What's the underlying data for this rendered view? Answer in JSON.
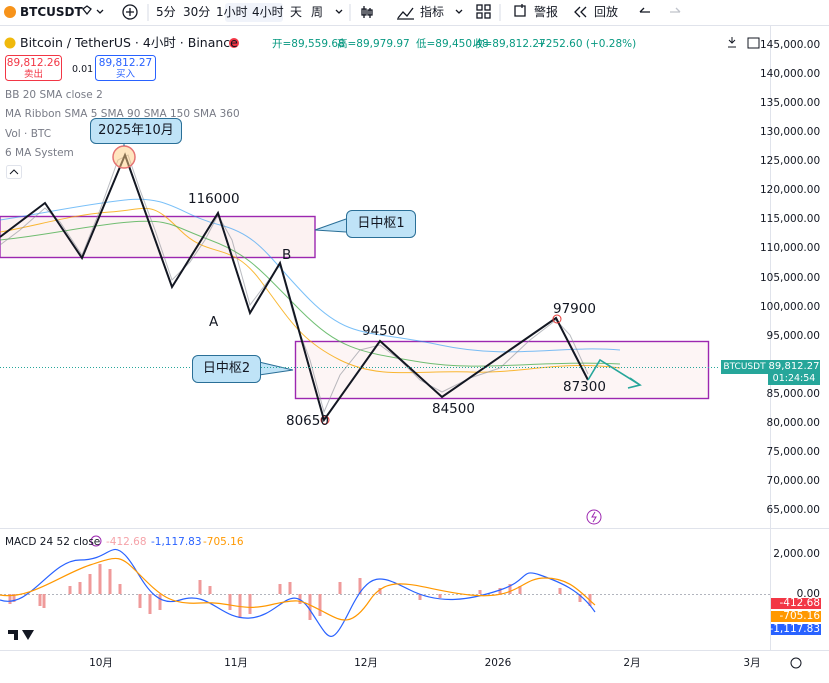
{
  "toolbar": {
    "symbol": "BTCUSDT",
    "intervals": [
      "5分",
      "30分",
      "1小时",
      "4小时",
      "天",
      "周"
    ],
    "indicators": "指标",
    "alert": "警报",
    "replay": "回放"
  },
  "legend": {
    "title": "Bitcoin / TetherUS · 4小时 · Binance",
    "ohlc": [
      "开=89,559.68",
      "高=89,979.97",
      "低=89,450.48",
      "收=89,812.27"
    ],
    "change": "+252.60 (+0.28%)",
    "sell": {
      "price": "89,812.26",
      "label": "卖出"
    },
    "spread": "0.01",
    "buy": {
      "price": "89,812.27",
      "label": "买入"
    },
    "indicators": [
      "BB 20 SMA close 2",
      "MA Ribbon SMA 5 SMA 90 SMA 150 SMA 360",
      "Vol · BTC",
      "6 MA System"
    ]
  },
  "annotations": {
    "october": "2025年10月",
    "high_116000": "116000",
    "zone1": "日中枢1",
    "point_b": "B",
    "point_a": "A",
    "high_94500": "94500",
    "high_97900": "97900",
    "zone2": "日中枢2",
    "low_80650": "80650",
    "low_84500": "84500",
    "low_87300": "87300"
  },
  "price_axis": [
    "145,000.00",
    "140,000.00",
    "135,000.00",
    "130,000.00",
    "125,000.00",
    "120,000.00",
    "115,000.00",
    "110,000.00",
    "105,000.00",
    "100,000.00",
    "95,000.00",
    "85,000.00",
    "80,000.00",
    "75,000.00",
    "70,000.00",
    "65,000.00"
  ],
  "price_tag": {
    "symbol": "BTCUSDT",
    "price": "89,812.27",
    "countdown": "01:24:54"
  },
  "macd": {
    "title": "MACD 24 52 close",
    "values": [
      "-412.68",
      "-1,117.83",
      "-705.16"
    ],
    "axis": [
      "2,000.00",
      "0.00"
    ],
    "tags": [
      "-412.68",
      "-705.16",
      "-1,117.83"
    ]
  },
  "time_axis": [
    "10月",
    "11月",
    "12月",
    "2026",
    "2月",
    "3月"
  ]
}
